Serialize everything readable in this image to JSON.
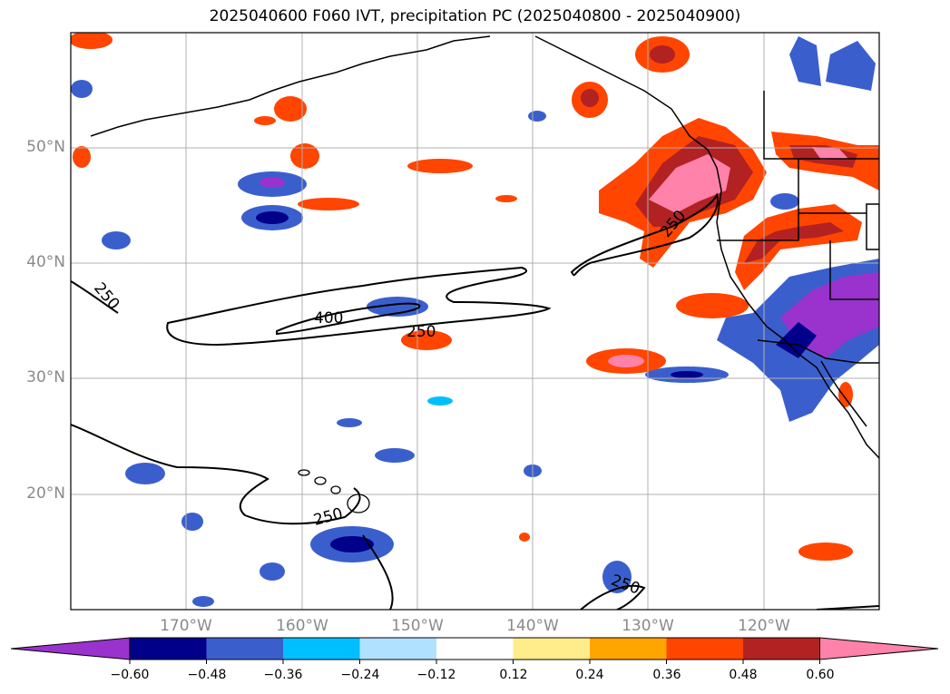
{
  "title": "2025040600 F060 IVT, precipitation PC (2025040800 - 2025040900)",
  "map": {
    "projection": "plate-carree",
    "lon_range": [
      -180,
      -110
    ],
    "lat_range": [
      10,
      60
    ],
    "lat_ticks": [
      {
        "value": 50,
        "label": "50°N"
      },
      {
        "value": 40,
        "label": "40°N"
      },
      {
        "value": 30,
        "label": "30°N"
      },
      {
        "value": 20,
        "label": "20°N"
      }
    ],
    "lon_ticks": [
      {
        "value": -170,
        "label": "170°W"
      },
      {
        "value": -160,
        "label": "160°W"
      },
      {
        "value": -150,
        "label": "150°W"
      },
      {
        "value": -140,
        "label": "140°W"
      },
      {
        "value": -130,
        "label": "130°W"
      },
      {
        "value": -120,
        "label": "120°W"
      }
    ],
    "contour_labels": [
      "250",
      "400",
      "250",
      "250",
      "250",
      "250"
    ]
  },
  "colorbar": {
    "colors": [
      "#9a32cd",
      "#00008b",
      "#3a5fcd",
      "#00bfff",
      "#b0e2ff",
      "#ffffff",
      "#ffec8b",
      "#ffa500",
      "#ff4500",
      "#b22222",
      "#ff82ab"
    ],
    "labels": [
      "−0.60",
      "−0.48",
      "−0.36",
      "−0.24",
      "−0.12",
      "0.12",
      "0.24",
      "0.36",
      "0.48",
      "0.60"
    ]
  }
}
